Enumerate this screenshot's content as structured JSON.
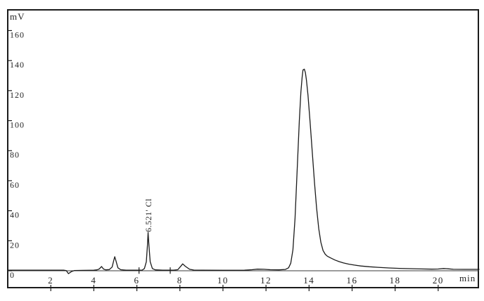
{
  "window": {
    "background": "#ffffff",
    "frame_border_color": "#1b1b1b"
  },
  "chart_data": {
    "type": "line",
    "title": "",
    "ylabel": "mV",
    "xlabel": "min",
    "xlim": [
      0,
      21.9
    ],
    "ylim": [
      -11.7,
      173.8
    ],
    "x_ticks": [
      2,
      4,
      6,
      8,
      10,
      12,
      14,
      16,
      18,
      20
    ],
    "y_ticks": [
      0,
      20,
      40,
      60,
      80,
      100,
      120,
      140,
      160
    ],
    "grid": false,
    "legend": false,
    "line_color": "#1b1b1b",
    "zero_line_color": "#3a3a3a",
    "tick_text_color": "#232323",
    "annotation": {
      "text": "6.521' Cl",
      "at_min": 6.52
    },
    "integration_marks_min": [
      6.1,
      7.55
    ],
    "peaks": [
      {
        "retention_min": 2.85,
        "height_mV": -1.9,
        "label": ""
      },
      {
        "retention_min": 4.36,
        "height_mV": 2.8,
        "label": ""
      },
      {
        "retention_min": 4.97,
        "height_mV": 9.4,
        "label": ""
      },
      {
        "retention_min": 6.52,
        "height_mV": 25.5,
        "label": "6.521' Cl"
      },
      {
        "retention_min": 8.13,
        "height_mV": 4.6,
        "label": ""
      },
      {
        "retention_min": 13.75,
        "height_mV": 134.3,
        "label": ""
      }
    ],
    "series": [
      {
        "name": "detector-signal",
        "points": [
          [
            0,
            0.4
          ],
          [
            1.0,
            0.4
          ],
          [
            2.0,
            0.4
          ],
          [
            2.6,
            0.4
          ],
          [
            2.72,
            0.1
          ],
          [
            2.82,
            -1.9
          ],
          [
            2.95,
            -0.6
          ],
          [
            3.1,
            0.2
          ],
          [
            3.5,
            0.3
          ],
          [
            4.0,
            0.4
          ],
          [
            4.15,
            0.6
          ],
          [
            4.25,
            1.2
          ],
          [
            4.36,
            2.8
          ],
          [
            4.45,
            1.2
          ],
          [
            4.55,
            0.6
          ],
          [
            4.72,
            0.8
          ],
          [
            4.85,
            2.5
          ],
          [
            4.92,
            6.5
          ],
          [
            4.97,
            9.4
          ],
          [
            5.03,
            6.5
          ],
          [
            5.12,
            2.0
          ],
          [
            5.25,
            0.7
          ],
          [
            5.5,
            0.4
          ],
          [
            6.0,
            0.4
          ],
          [
            6.25,
            0.5
          ],
          [
            6.35,
            1.5
          ],
          [
            6.44,
            6.0
          ],
          [
            6.49,
            17.0
          ],
          [
            6.52,
            25.5
          ],
          [
            6.56,
            17.0
          ],
          [
            6.62,
            6.0
          ],
          [
            6.72,
            1.5
          ],
          [
            6.85,
            0.6
          ],
          [
            7.2,
            0.4
          ],
          [
            7.7,
            0.4
          ],
          [
            7.9,
            0.7
          ],
          [
            8.05,
            3.2
          ],
          [
            8.13,
            4.6
          ],
          [
            8.25,
            3.0
          ],
          [
            8.45,
            1.0
          ],
          [
            8.65,
            0.5
          ],
          [
            9.0,
            0.4
          ],
          [
            10.0,
            0.35
          ],
          [
            11.0,
            0.4
          ],
          [
            11.35,
            0.7
          ],
          [
            11.6,
            1.1
          ],
          [
            11.9,
            1.0
          ],
          [
            12.2,
            0.7
          ],
          [
            12.6,
            0.6
          ],
          [
            12.9,
            0.9
          ],
          [
            13.05,
            2.0
          ],
          [
            13.15,
            5.0
          ],
          [
            13.25,
            14.0
          ],
          [
            13.35,
            35.0
          ],
          [
            13.45,
            68.0
          ],
          [
            13.55,
            100.0
          ],
          [
            13.62,
            119.0
          ],
          [
            13.68,
            129.0
          ],
          [
            13.72,
            133.8
          ],
          [
            13.78,
            134.3
          ],
          [
            13.83,
            132.0
          ],
          [
            13.88,
            127.0
          ],
          [
            13.95,
            117.0
          ],
          [
            14.05,
            99.0
          ],
          [
            14.15,
            79.0
          ],
          [
            14.25,
            59.0
          ],
          [
            14.35,
            42.0
          ],
          [
            14.45,
            28.0
          ],
          [
            14.55,
            19.0
          ],
          [
            14.65,
            13.5
          ],
          [
            14.75,
            11.0
          ],
          [
            14.85,
            9.7
          ],
          [
            15.0,
            8.6
          ],
          [
            15.2,
            7.2
          ],
          [
            15.4,
            6.1
          ],
          [
            15.6,
            5.2
          ],
          [
            15.85,
            4.4
          ],
          [
            16.1,
            3.8
          ],
          [
            16.4,
            3.2
          ],
          [
            16.8,
            2.7
          ],
          [
            17.2,
            2.3
          ],
          [
            17.7,
            1.9
          ],
          [
            18.2,
            1.6
          ],
          [
            18.7,
            1.4
          ],
          [
            19.2,
            1.25
          ],
          [
            19.7,
            1.1
          ],
          [
            20.0,
            1.2
          ],
          [
            20.25,
            1.5
          ],
          [
            20.45,
            1.3
          ],
          [
            20.7,
            1.0
          ],
          [
            21.2,
            0.95
          ],
          [
            21.9,
            0.95
          ]
        ]
      }
    ]
  }
}
